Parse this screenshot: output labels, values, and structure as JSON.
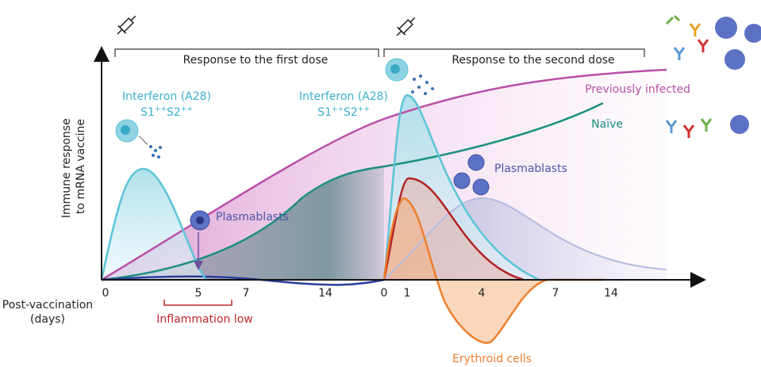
{
  "brackets": [
    "Response to the first dose",
    "Response to the second dose"
  ],
  "y_axis_label": [
    "Immune response",
    "to mRNA vaccine"
  ],
  "x_axis_label": [
    "Post-vaccination",
    "(days)"
  ],
  "first_dose_ticks": [
    0,
    5,
    7,
    14
  ],
  "second_dose_ticks": [
    0,
    1,
    4,
    7,
    14
  ],
  "interferon_labels": [
    {
      "line1": "Interferon (A28)",
      "line2": [
        "S1",
        "++",
        "S2",
        "++"
      ]
    },
    {
      "line1": "Interferon (A28)",
      "line2": [
        "S1",
        "++",
        "S2",
        "++"
      ]
    }
  ],
  "curve_labels": {
    "previously_infected": "Previously infected",
    "naive": "Naïve",
    "erythroid": "Erythroid cells"
  },
  "plasmablasts_labels": [
    "Plasmablasts",
    "Plasmablasts"
  ],
  "inflammation_label": "Inflammation low"
}
